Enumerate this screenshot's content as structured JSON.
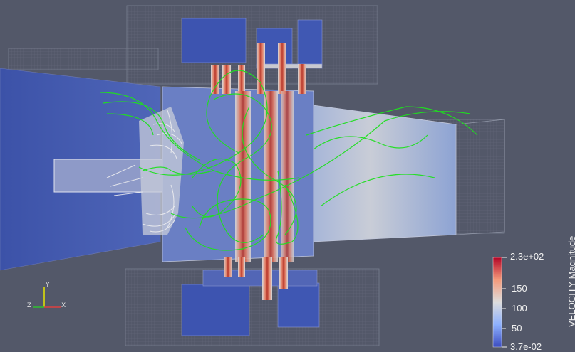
{
  "view": {
    "background": "#535869",
    "colormap": {
      "low": "#3b4cc0",
      "mid": "#dddddd",
      "high": "#b40426"
    },
    "streamline_color": "#22e022"
  },
  "colorbar": {
    "title": "VELOCITY Magnitude",
    "max_label": "2.3e+02",
    "min_label": "3.7e-02",
    "ticks": [
      "150",
      "100",
      "50"
    ],
    "range": [
      0.037,
      230
    ]
  },
  "axes_triad": {
    "x": "X",
    "y": "Y",
    "z": "Z"
  }
}
